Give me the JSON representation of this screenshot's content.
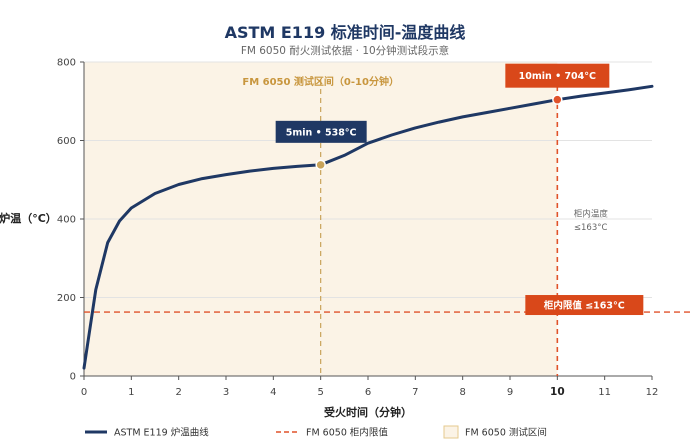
{
  "chart_data": {
    "type": "line",
    "title": "ASTM E119 标准时间-温度曲线",
    "subtitle": "FM 6050 耐火测试依据 · 10分钟测试段示意",
    "xlabel": "受火时间（分钟）",
    "ylabel": "炉温（°C）",
    "xlim": [
      0,
      12
    ],
    "ylim": [
      0,
      800
    ],
    "x_ticks": [
      "0",
      "1",
      "2",
      "3",
      "4",
      "5",
      "6",
      "7",
      "8",
      "9",
      "10",
      "11",
      "12"
    ],
    "y_ticks": [
      "0",
      "200",
      "400",
      "600",
      "800"
    ],
    "grid": "horizontal",
    "series": [
      {
        "name": "ASTM E119 炉温曲线",
        "color": "#1f3864",
        "x": [
          0,
          0.1,
          0.25,
          0.5,
          0.75,
          1,
          1.5,
          2,
          2.5,
          3,
          3.5,
          4,
          4.5,
          5,
          5.5,
          6,
          6.5,
          7,
          7.5,
          8,
          8.5,
          9,
          9.5,
          10,
          10.5,
          11,
          11.5,
          12
        ],
        "y": [
          20,
          100,
          220,
          340,
          395,
          428,
          465,
          488,
          503,
          513,
          522,
          529,
          534,
          538,
          562,
          593,
          614,
          632,
          647,
          660,
          671,
          682,
          693,
          704,
          713,
          721,
          729,
          738
        ]
      }
    ],
    "reference_line": {
      "name": "FM 6050 柜内限值",
      "y": 163,
      "label": "柜内限值 ≤163°C",
      "color": "#e0522a"
    },
    "region": {
      "name": "FM 6050 测试区间",
      "x": [
        0,
        10
      ],
      "label": "FM 6050 测试区间（0-10分钟）",
      "color": "#fbf3e6"
    },
    "markers": [
      {
        "x": 5,
        "y": 538,
        "label": "5min • 538°C",
        "color": "#c8a35a",
        "box_color": "#1f3864"
      },
      {
        "x": 10,
        "y": 704,
        "label": "10min • 704°C",
        "color": "#e0522a",
        "box_color": "#d9481a"
      }
    ],
    "side_note": [
      "柜内温度",
      "≤163°C"
    ],
    "legend": [
      {
        "label": "ASTM E119 炉温曲线",
        "kind": "line"
      },
      {
        "label": "FM 6050 柜内限值",
        "kind": "dashed"
      },
      {
        "label": "FM 6050 测试区间",
        "kind": "box"
      }
    ],
    "legend_position": "bottom"
  }
}
